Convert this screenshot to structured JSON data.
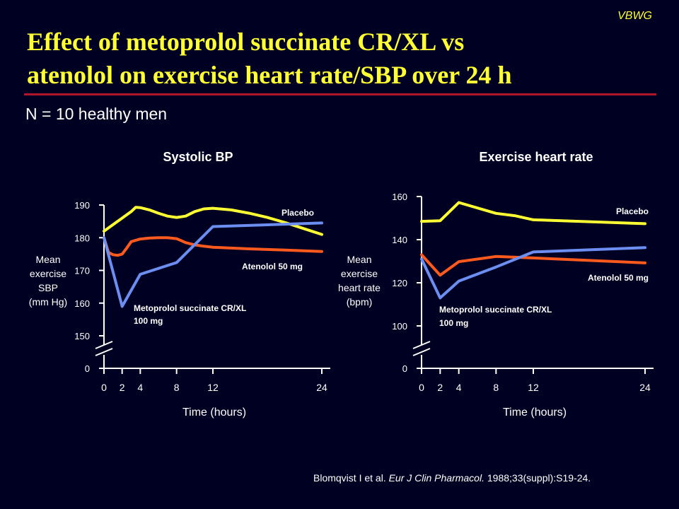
{
  "tag": "VBWG",
  "title_line1": "Effect of metoprolol succinate CR/XL vs",
  "title_line2": "atenolol on exercise heart rate/SBP over 24 h",
  "subtitle": "N = 10 healthy men",
  "citation": {
    "authors": "Blomqvist I et al. ",
    "journal": "Eur J Clin Pharmacol.",
    "details": " 1988;33(suppl):S19-24."
  },
  "colors": {
    "background": "#000022",
    "title": "#ffff33",
    "rule": "#b0162a",
    "axis": "#ffffff",
    "placebo": "#ffff33",
    "atenolol": "#ff5a1e",
    "metoprolol": "#6b8ef0"
  },
  "chart_data": [
    {
      "type": "line",
      "title": "Systolic BP",
      "xlabel": "Time (hours)",
      "ylabel": [
        "Mean",
        "exercise",
        "SBP",
        "(mm Hg)"
      ],
      "xticks": [
        0,
        2,
        4,
        8,
        12,
        24
      ],
      "yticks": [
        150,
        160,
        170,
        180,
        190
      ],
      "ybreak_label": "0",
      "ylim": [
        145,
        192
      ],
      "xlim": [
        0,
        24
      ],
      "series": [
        {
          "name": "Placebo",
          "color": "#ffff33",
          "x": [
            0,
            1,
            2,
            3,
            3.5,
            4,
            5,
            6,
            7,
            8,
            9,
            10,
            11,
            12,
            14,
            16,
            18,
            20,
            22,
            24
          ],
          "y": [
            182,
            184,
            186,
            188,
            189.3,
            189.2,
            188.5,
            187.5,
            186.6,
            186.2,
            186.6,
            188,
            188.8,
            189,
            188.5,
            187.5,
            186.2,
            184.6,
            182.8,
            181
          ]
        },
        {
          "name": "Atenolol 50 mg",
          "color": "#ff5a1e",
          "x": [
            0,
            0.5,
            1,
            1.5,
            2,
            2.5,
            3,
            4,
            5,
            6,
            7,
            8,
            9,
            10,
            11,
            12,
            16,
            20,
            24
          ],
          "y": [
            180,
            175.5,
            174.8,
            174.6,
            175,
            176.8,
            178.8,
            179.6,
            179.9,
            180,
            180,
            179.7,
            178.5,
            177.8,
            177.4,
            177.1,
            176.6,
            176.2,
            175.8
          ]
        },
        {
          "name": "Metoprolol succinate CR/XL 100 mg",
          "color": "#6b8ef0",
          "x": [
            0,
            2,
            4,
            8,
            12,
            24
          ],
          "y": [
            180,
            159,
            168.8,
            172.4,
            183.4,
            184.5
          ]
        }
      ],
      "annotations": [
        {
          "text": "Placebo",
          "series": "Placebo"
        },
        {
          "text": "Atenolol 50 mg",
          "series": "Atenolol 50 mg"
        },
        {
          "text": "Metoprolol succinate  CR/XL",
          "series": "Metoprolol succinate CR/XL 100 mg"
        },
        {
          "text": "100 mg",
          "series": "Metoprolol succinate CR/XL 100 mg"
        }
      ]
    },
    {
      "type": "line",
      "title": "Exercise heart rate",
      "xlabel": "Time (hours)",
      "ylabel": [
        "Mean",
        "exercise",
        "heart rate",
        "(bpm)"
      ],
      "xticks": [
        0,
        2,
        4,
        8,
        12,
        24
      ],
      "yticks": [
        100,
        120,
        140,
        160
      ],
      "ybreak_label": "0",
      "ylim": [
        95,
        162
      ],
      "xlim": [
        0,
        24
      ],
      "series": [
        {
          "name": "Placebo",
          "color": "#ffff33",
          "x": [
            0,
            2,
            4,
            8,
            10,
            12,
            24
          ],
          "y": [
            148.5,
            148.8,
            157.2,
            152.2,
            151.1,
            149.2,
            147.4
          ]
        },
        {
          "name": "Atenolol 50 mg",
          "color": "#ff5a1e",
          "x": [
            0,
            2,
            4,
            8,
            12,
            24
          ],
          "y": [
            133,
            123.5,
            129.8,
            132.2,
            131.5,
            129.2
          ]
        },
        {
          "name": "Metoprolol succinate CR/XL 100 mg",
          "color": "#6b8ef0",
          "x": [
            0,
            2,
            4,
            8,
            12,
            24
          ],
          "y": [
            131,
            113,
            120.8,
            127.3,
            134.3,
            136.3
          ]
        }
      ],
      "annotations": [
        {
          "text": "Placebo",
          "series": "Placebo"
        },
        {
          "text": "Atenolol 50 mg",
          "series": "Atenolol 50 mg"
        },
        {
          "text": "Metoprolol succinate CR/XL",
          "series": "Metoprolol succinate CR/XL 100 mg"
        },
        {
          "text": "100 mg",
          "series": "Metoprolol succinate CR/XL 100 mg"
        }
      ]
    }
  ]
}
